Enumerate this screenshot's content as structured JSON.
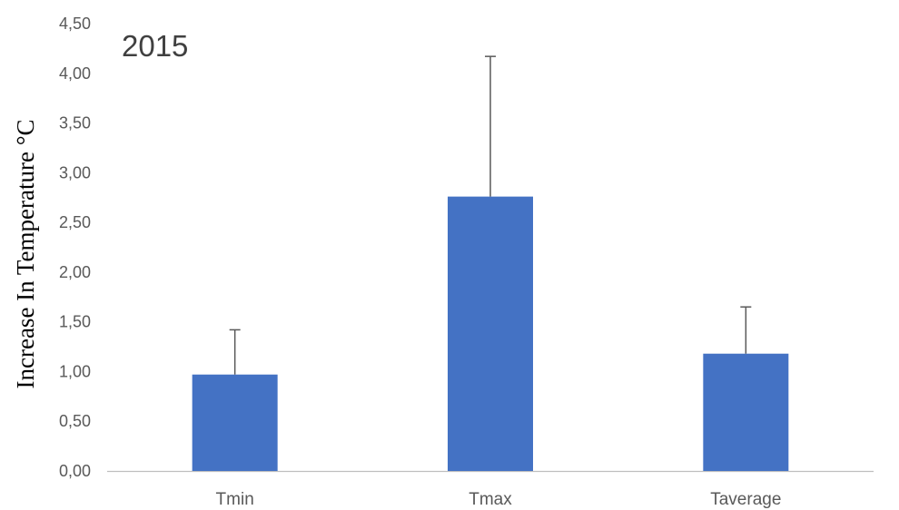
{
  "chart_data": {
    "type": "bar",
    "title": "",
    "annotation": "2015",
    "xlabel": "",
    "ylabel": "Increase In Temperature °C",
    "categories": [
      "Tmin",
      "Tmax",
      "Taverage"
    ],
    "values": [
      0.97,
      2.76,
      1.18
    ],
    "error_bars_upper": [
      0.45,
      1.41,
      0.47
    ],
    "ylim": [
      0,
      4.5
    ],
    "yticks": [
      "0,00",
      "0,50",
      "1,00",
      "1,50",
      "2,00",
      "2,50",
      "3,00",
      "3,50",
      "4,00",
      "4,50"
    ],
    "grid": false,
    "legend": "none",
    "colors": {
      "bar": "#4472C4",
      "error_bar": "#595959",
      "axis": "#BFBFBF"
    }
  }
}
